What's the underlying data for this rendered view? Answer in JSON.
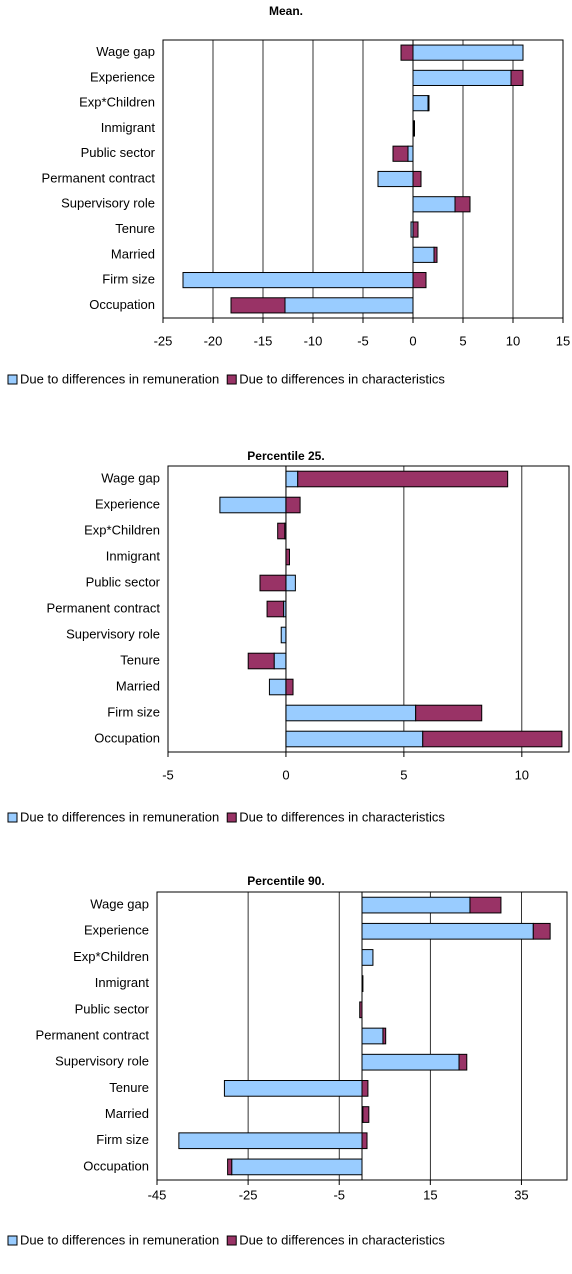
{
  "chart_data": [
    {
      "type": "bar",
      "orientation": "horizontal",
      "title": "Mean.",
      "categories": [
        "Wage gap",
        "Experience",
        "Exp*Children",
        "Inmigrant",
        "Public sector",
        "Permanent contract",
        "Supervisory role",
        "Tenure",
        "Married",
        "Firm size",
        "Occupation"
      ],
      "series": [
        {
          "name": "Due to differences in remuneration",
          "color": "#99ccff",
          "values": [
            11,
            9.8,
            1.5,
            0.1,
            -0.5,
            -3.5,
            4.2,
            -0.2,
            2.1,
            -23,
            -12.8
          ]
        },
        {
          "name": "Due to differences in characteristics",
          "color": "#993366",
          "values": [
            -1.2,
            1.2,
            0.1,
            0.05,
            -1.5,
            0.8,
            1.5,
            0.5,
            0.3,
            1.3,
            -5.4
          ]
        }
      ],
      "xlim": [
        -25,
        15
      ],
      "xticks": [
        -25,
        -20,
        -15,
        -10,
        -5,
        0,
        5,
        10,
        15
      ],
      "grid": true
    },
    {
      "type": "bar",
      "orientation": "horizontal",
      "title": "Percentile 25.",
      "categories": [
        "Wage gap",
        "Experience",
        "Exp*Children",
        "Inmigrant",
        "Public sector",
        "Permanent contract",
        "Supervisory role",
        "Tenure",
        "Married",
        "Firm size",
        "Occupation"
      ],
      "series": [
        {
          "name": "Due to differences in remuneration",
          "color": "#99ccff",
          "values": [
            0.5,
            -2.8,
            -0.05,
            0,
            0.4,
            -0.1,
            -0.2,
            -0.5,
            -0.7,
            5.5,
            5.8
          ]
        },
        {
          "name": "Due to differences in characteristics",
          "color": "#993366",
          "values": [
            8.9,
            0.6,
            -0.3,
            0.15,
            -1.1,
            -0.7,
            0,
            -1.1,
            0.3,
            2.8,
            5.9
          ]
        }
      ],
      "xlim": [
        -5,
        12
      ],
      "xticks": [
        -5,
        0,
        5,
        10
      ],
      "grid": true
    },
    {
      "type": "bar",
      "orientation": "horizontal",
      "title": "Percentile 90.",
      "categories": [
        "Wage gap",
        "Experience",
        "Exp*Children",
        "Inmigrant",
        "Public sector",
        "Permanent contract",
        "Supervisory role",
        "Tenure",
        "Married",
        "Firm size",
        "Occupation"
      ],
      "series": [
        {
          "name": "Due to differences in remuneration",
          "color": "#99ccff",
          "values": [
            23.7,
            37.6,
            2.4,
            0.1,
            0,
            4.6,
            21.3,
            -30.2,
            0.2,
            -40.2,
            -28.6
          ]
        },
        {
          "name": "Due to differences in characteristics",
          "color": "#993366",
          "values": [
            6.8,
            3.7,
            0,
            0.1,
            -0.5,
            0.6,
            1.7,
            1.3,
            1.3,
            1.1,
            -0.9
          ]
        }
      ],
      "xlim": [
        -45,
        45
      ],
      "xticks": [
        -45,
        -25,
        -5,
        15,
        35
      ],
      "grid": true
    }
  ]
}
